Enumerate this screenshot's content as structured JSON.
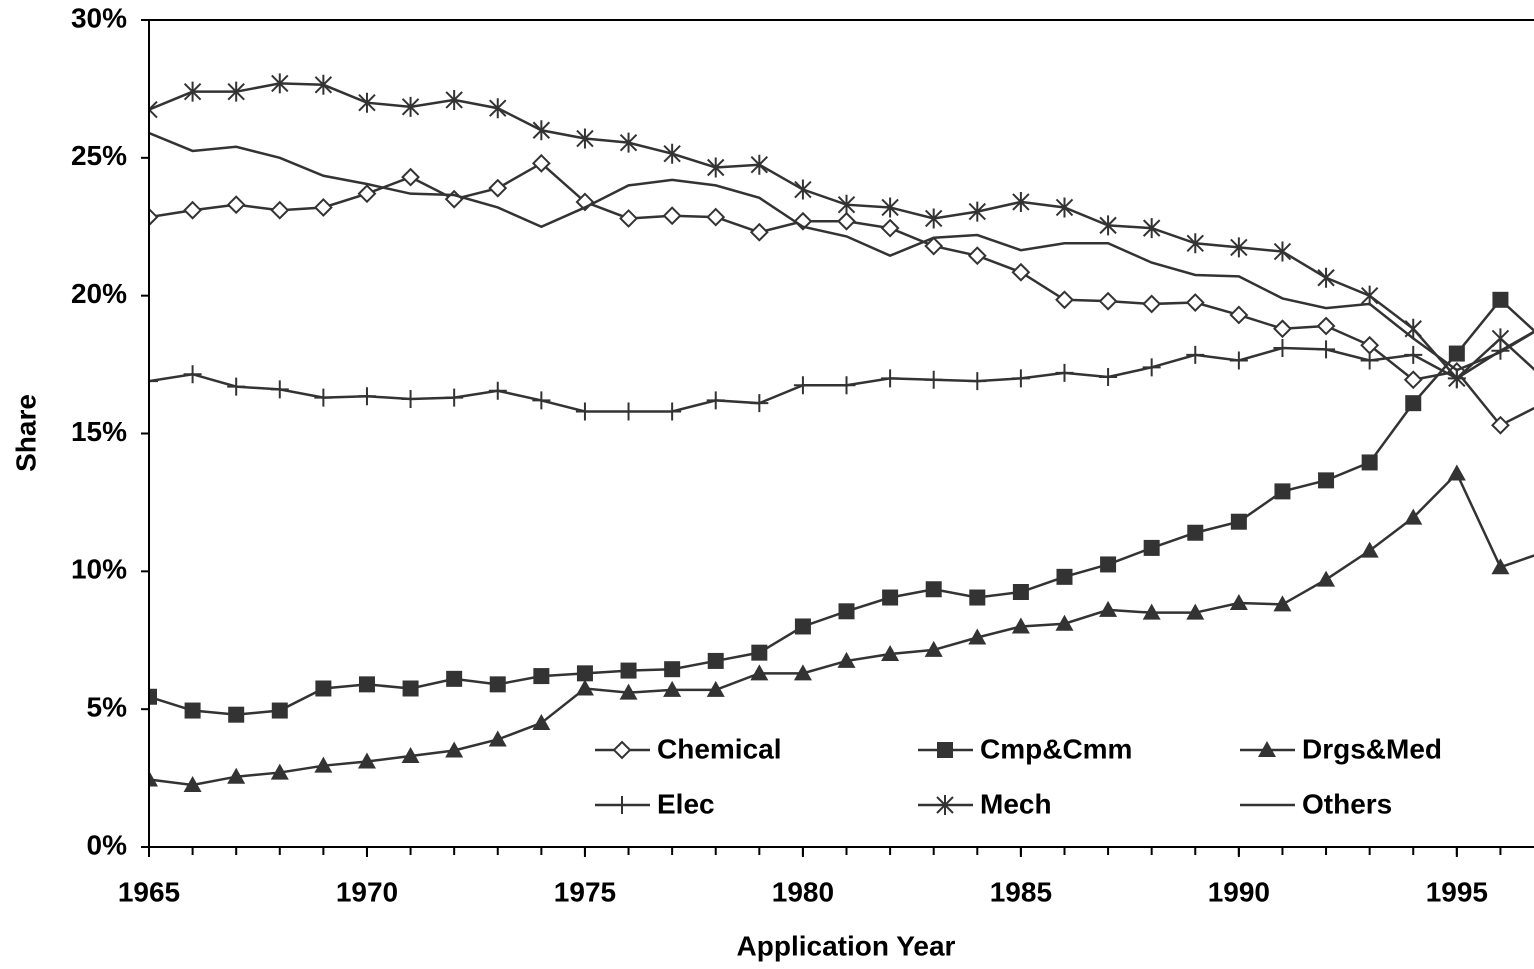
{
  "chart_data": {
    "type": "line",
    "x_label": "Application Year",
    "y_label": "Share",
    "x": [
      1965,
      1966,
      1967,
      1968,
      1969,
      1970,
      1971,
      1972,
      1973,
      1974,
      1975,
      1976,
      1977,
      1978,
      1979,
      1980,
      1981,
      1982,
      1983,
      1984,
      1985,
      1986,
      1987,
      1988,
      1989,
      1990,
      1991,
      1992,
      1993,
      1994,
      1995,
      1996,
      1997
    ],
    "series": [
      {
        "name": "Chemical",
        "color": "#333333",
        "marker": "diamond",
        "values": [
          22.85,
          23.1,
          23.3,
          23.1,
          23.2,
          23.7,
          24.3,
          23.5,
          23.9,
          24.8,
          23.4,
          22.8,
          22.9,
          22.85,
          22.3,
          22.7,
          22.7,
          22.45,
          21.8,
          21.45,
          20.85,
          19.85,
          19.8,
          19.7,
          19.75,
          19.3,
          18.8,
          18.9,
          18.2,
          16.95,
          17.25,
          15.3,
          16.1
        ]
      },
      {
        "name": "Cmp&Cmm",
        "color": "#333333",
        "marker": "square",
        "values": [
          5.45,
          4.95,
          4.8,
          4.95,
          5.75,
          5.9,
          5.75,
          6.1,
          5.9,
          6.2,
          6.3,
          6.4,
          6.45,
          6.75,
          7.05,
          8.0,
          8.55,
          9.05,
          9.35,
          9.05,
          9.25,
          9.8,
          10.25,
          10.85,
          11.4,
          11.8,
          12.9,
          13.3,
          13.95,
          16.1,
          17.9,
          19.85,
          18.4
        ]
      },
      {
        "name": "Drgs&Med",
        "color": "#333333",
        "marker": "triangle",
        "values": [
          2.45,
          2.25,
          2.55,
          2.7,
          2.95,
          3.1,
          3.3,
          3.5,
          3.9,
          4.5,
          5.75,
          5.6,
          5.7,
          5.7,
          6.3,
          6.3,
          6.75,
          7.0,
          7.15,
          7.6,
          8.0,
          8.1,
          8.6,
          8.5,
          8.5,
          8.85,
          8.8,
          9.7,
          10.75,
          11.95,
          13.55,
          10.15,
          10.7
        ]
      },
      {
        "name": "Elec",
        "color": "#333333",
        "marker": "plus",
        "values": [
          16.9,
          17.15,
          16.7,
          16.6,
          16.3,
          16.35,
          16.25,
          16.3,
          16.55,
          16.2,
          15.8,
          15.8,
          15.8,
          16.2,
          16.1,
          16.75,
          16.75,
          17.0,
          16.95,
          16.9,
          17.0,
          17.2,
          17.05,
          17.4,
          17.85,
          17.65,
          18.1,
          18.05,
          17.65,
          17.85,
          17.0,
          18.0,
          18.9
        ]
      },
      {
        "name": "Mech",
        "color": "#333333",
        "marker": "asterisk",
        "values": [
          26.75,
          27.4,
          27.4,
          27.7,
          27.65,
          27.0,
          26.85,
          27.1,
          26.8,
          26.0,
          25.7,
          25.55,
          25.15,
          24.65,
          24.75,
          23.85,
          23.3,
          23.2,
          22.8,
          23.05,
          23.4,
          23.2,
          22.55,
          22.45,
          21.9,
          21.75,
          21.6,
          20.65,
          20.0,
          18.8,
          17.0,
          18.45,
          17.0
        ]
      },
      {
        "name": "Others",
        "color": "#333333",
        "marker": "none",
        "values": [
          25.9,
          25.25,
          25.4,
          25.0,
          24.35,
          24.05,
          23.7,
          23.65,
          23.2,
          22.5,
          23.2,
          24.0,
          24.2,
          24.0,
          23.55,
          22.5,
          22.15,
          21.45,
          22.1,
          22.2,
          21.65,
          21.9,
          21.9,
          21.2,
          20.75,
          20.7,
          19.9,
          19.55,
          19.7,
          18.45,
          17.3,
          17.95,
          18.9
        ]
      }
    ],
    "xlim": [
      1965,
      1996.77
    ],
    "xticks": [
      1965,
      1970,
      1975,
      1980,
      1985,
      1990,
      1995
    ],
    "ylim": [
      0,
      30
    ],
    "yticks": [
      {
        "value": 0,
        "label": "0%"
      },
      {
        "value": 5,
        "label": "5%"
      },
      {
        "value": 10,
        "label": "10%"
      },
      {
        "value": 15,
        "label": "15%"
      },
      {
        "value": 20,
        "label": "20%"
      },
      {
        "value": 25,
        "label": "25%"
      },
      {
        "value": 30,
        "label": "30%"
      }
    ],
    "legend": "bottom",
    "grid": false
  }
}
